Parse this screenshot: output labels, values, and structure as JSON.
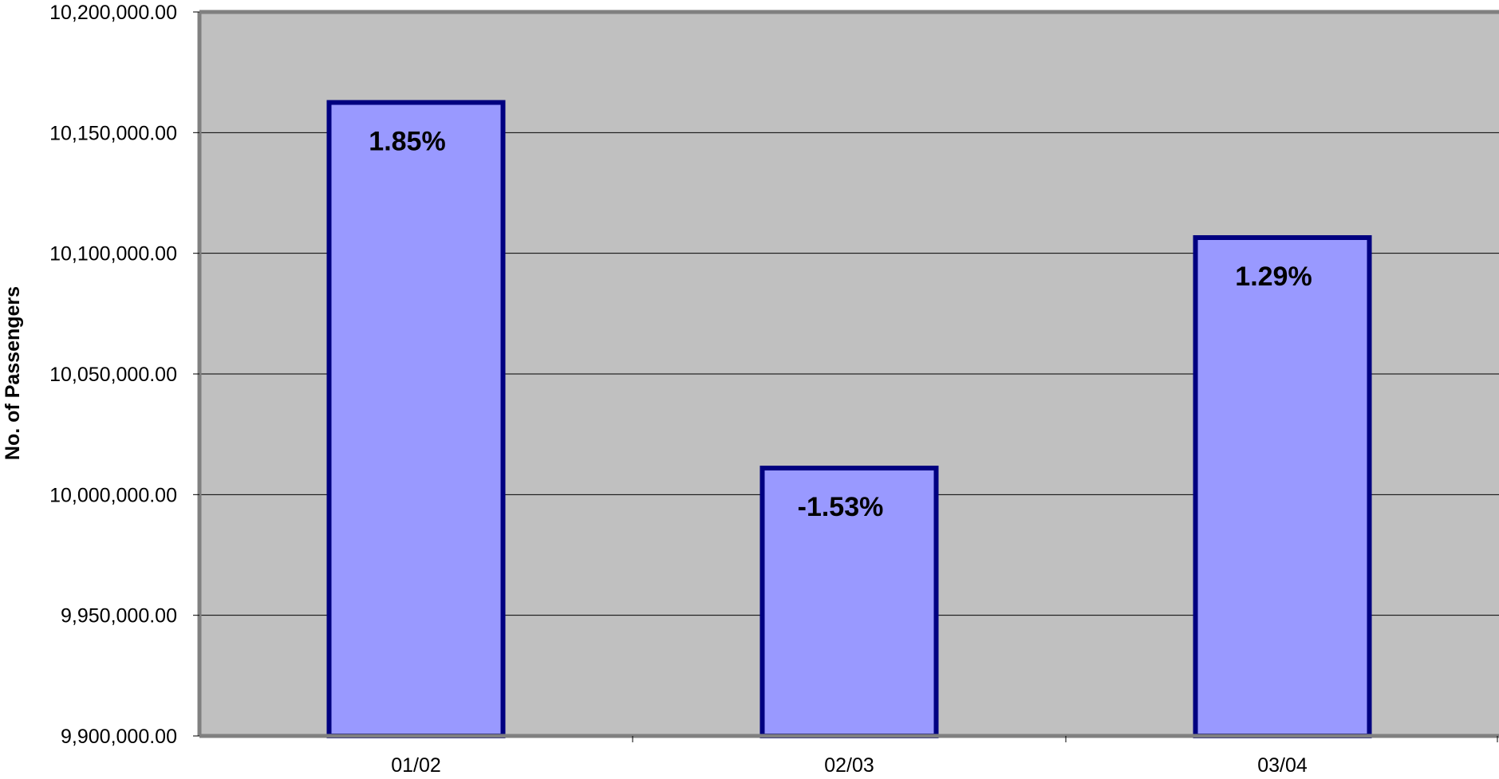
{
  "chart_data": {
    "type": "bar",
    "categories": [
      "01/02",
      "02/03",
      "03/04"
    ],
    "values": [
      10162500,
      10011000,
      10106500
    ],
    "data_labels": [
      "1.85%",
      "-1.53%",
      "1.29%"
    ],
    "ylabel": "No. of Passengers",
    "ylim": [
      9900000,
      10200000
    ],
    "yticks": [
      9900000,
      9950000,
      10000000,
      10050000,
      10100000,
      10150000,
      10200000
    ],
    "ytick_labels": [
      "9,900,000.00",
      "9,950,000.00",
      "10,000,000.00",
      "10,050,000.00",
      "10,100,000.00",
      "10,150,000.00",
      "10,200,000.00"
    ],
    "grid": true,
    "legend": "none",
    "colors": {
      "plot_background": "#c0c0c0",
      "bar_fill": "#9999ff",
      "bar_border": "#000080",
      "grid": "#000000",
      "frame": "#808080"
    }
  }
}
